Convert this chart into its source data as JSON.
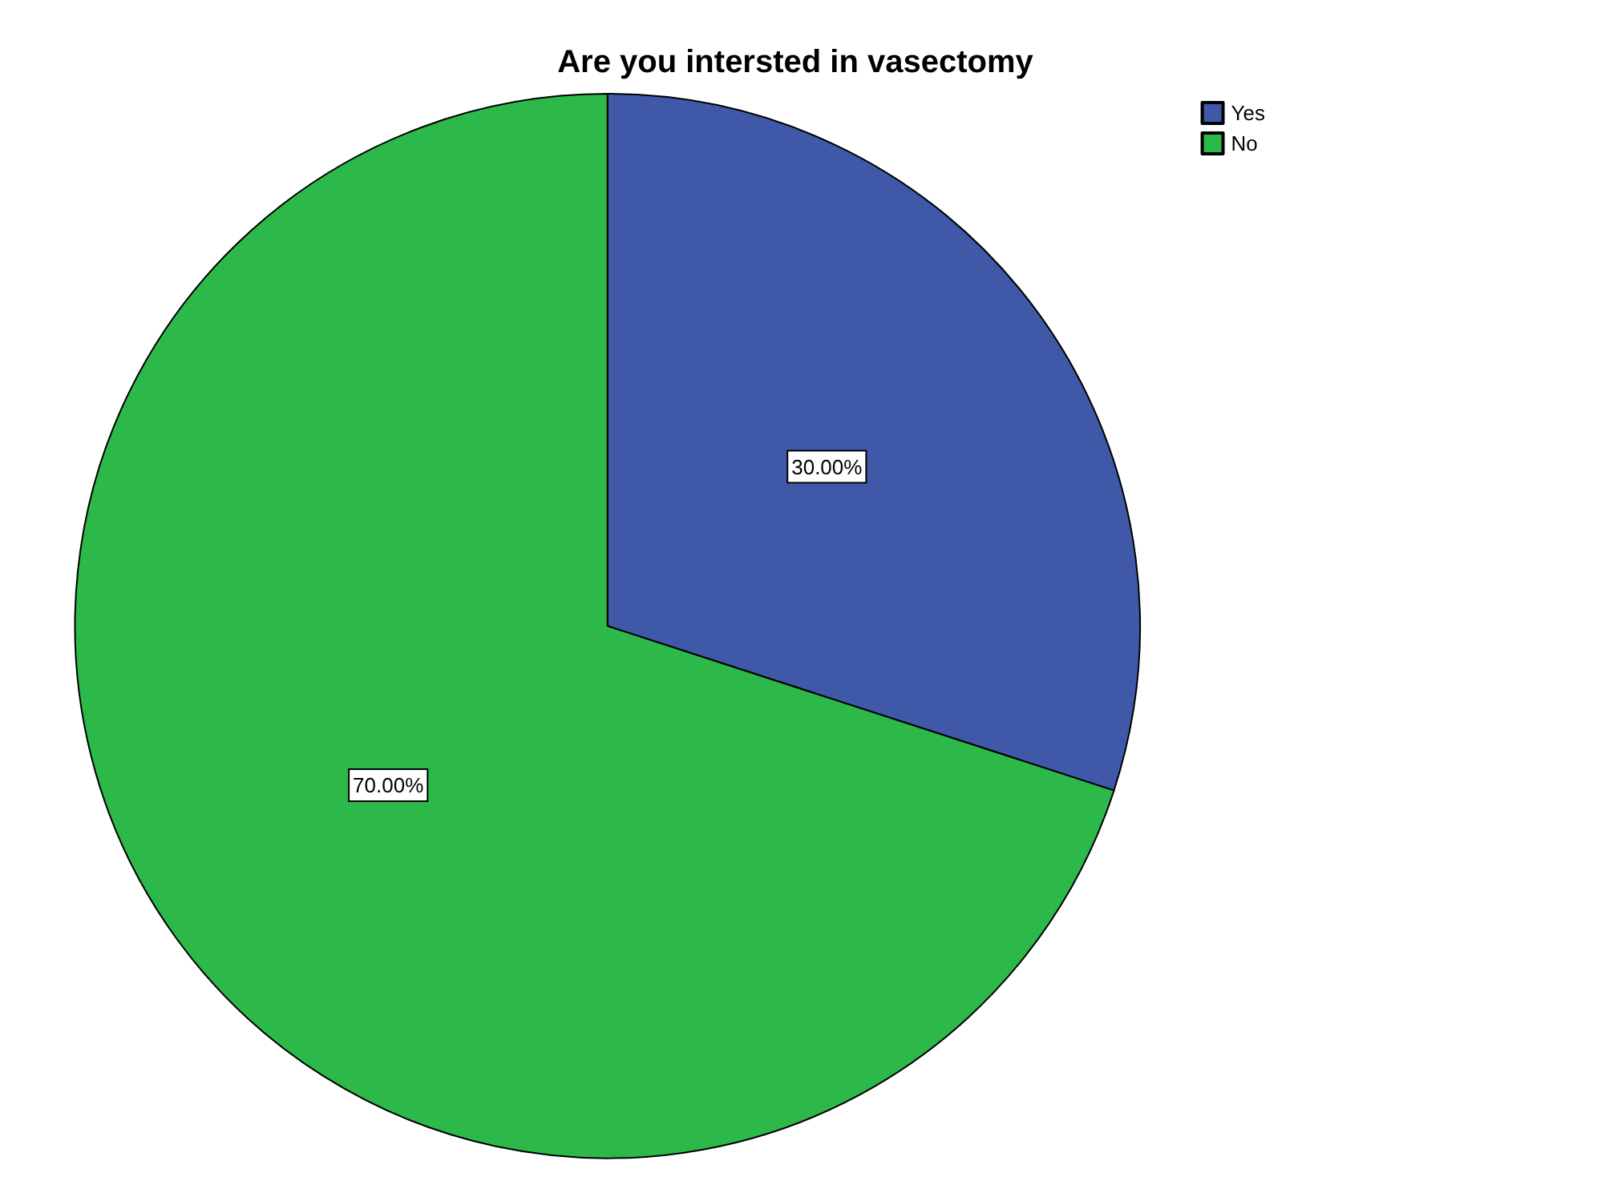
{
  "chart_data": {
    "type": "pie",
    "title": "Are you intersted in vasectomy",
    "categories": [
      "Yes",
      "No"
    ],
    "values": [
      30,
      70
    ],
    "colors": [
      "#3f58a8",
      "#2db84a"
    ],
    "value_labels": [
      "30.00%",
      "70.00%"
    ],
    "legend": "top right"
  }
}
